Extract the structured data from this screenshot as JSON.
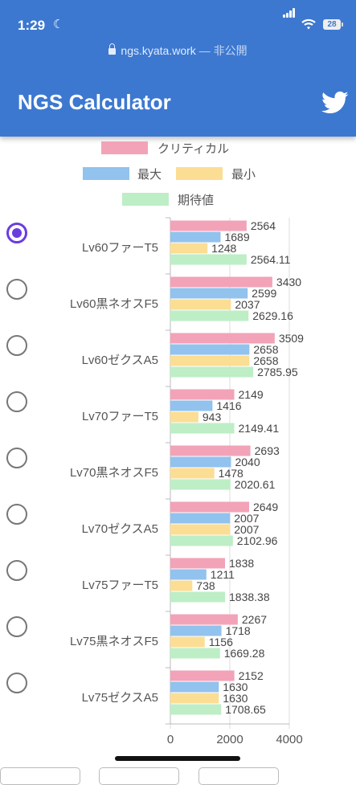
{
  "status_bar": {
    "time": "1:29",
    "battery": "28"
  },
  "browser": {
    "url": "ngs.kyata.work",
    "url_suffix": "— 非公開"
  },
  "header": {
    "title": "NGS Calculator",
    "share_icon": "twitter-icon"
  },
  "colors": {
    "header_bg": "#3c78d0",
    "critical": "#f2a3b8",
    "max": "#92c2ee",
    "min": "#fbde94",
    "expected": "#bdeec6",
    "radio_selected": "#6a3ce0"
  },
  "options": [
    {
      "label": "Lv60ファーT5",
      "selected": true
    },
    {
      "label": "Lv60黒ネオスF5",
      "selected": false
    },
    {
      "label": "Lv60ゼクスA5",
      "selected": false
    },
    {
      "label": "Lv70ファーT5",
      "selected": false
    },
    {
      "label": "Lv70黒ネオスF5",
      "selected": false
    },
    {
      "label": "Lv70ゼクスA5",
      "selected": false
    },
    {
      "label": "Lv75ファーT5",
      "selected": false
    },
    {
      "label": "Lv75黒ネオスF5",
      "selected": false
    },
    {
      "label": "Lv75ゼクスA5",
      "selected": false
    }
  ],
  "chart_data": {
    "type": "bar",
    "orientation": "horizontal",
    "categories": [
      "Lv60ファーT5",
      "Lv60黒ネオスF5",
      "Lv60ゼクスA5",
      "Lv70ファーT5",
      "Lv70黒ネオスF5",
      "Lv70ゼクスA5",
      "Lv75ファーT5",
      "Lv75黒ネオスF5",
      "Lv75ゼクスA5"
    ],
    "series": [
      {
        "name": "クリティカル",
        "color": "#f2a3b8",
        "values": [
          "2564",
          "3430",
          "3509",
          "2149",
          "2693",
          "2649",
          "1838",
          "2267",
          "2152"
        ]
      },
      {
        "name": "最大",
        "color": "#92c2ee",
        "values": [
          "1689",
          "2599",
          "2658",
          "1416",
          "2040",
          "2007",
          "1211",
          "1718",
          "1630"
        ]
      },
      {
        "name": "最小",
        "color": "#fbde94",
        "values": [
          "1248",
          "2037",
          "2658",
          "943",
          "1478",
          "2007",
          "738",
          "1156",
          "1630"
        ]
      },
      {
        "name": "期待値",
        "color": "#bdeec6",
        "values": [
          "2564.11",
          "2629.16",
          "2785.95",
          "2149.41",
          "2020.61",
          "2102.96",
          "1838.38",
          "1669.28",
          "1708.65"
        ]
      }
    ],
    "xlim": [
      0,
      4000
    ],
    "x_ticks": [
      "0",
      "2000",
      "4000"
    ],
    "grid": true,
    "legend_position": "top"
  }
}
